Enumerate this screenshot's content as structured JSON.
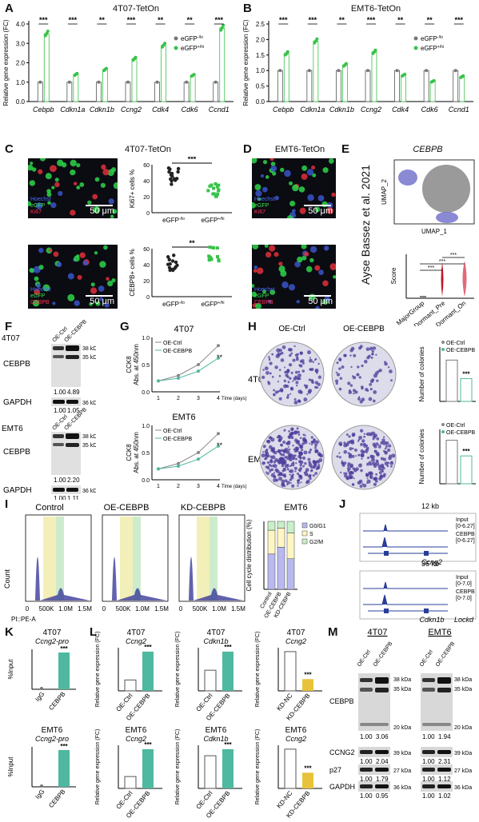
{
  "figure": {
    "panels": {
      "A": {
        "label": "A",
        "title": "4T07-TetOn"
      },
      "B": {
        "label": "B",
        "title": "EMT6-TetOn"
      },
      "C": {
        "label": "C",
        "title": "4T07-TetOn"
      },
      "D": {
        "label": "D",
        "title": "EMT6-TetOn"
      },
      "E": {
        "label": "E",
        "title": "CEBPB",
        "side_label": "Ayse Bassez et al. 2021"
      },
      "F": {
        "label": "F"
      },
      "G": {
        "label": "G"
      },
      "H": {
        "label": "H"
      },
      "I": {
        "label": "I"
      },
      "J": {
        "label": "J"
      },
      "K": {
        "label": "K"
      },
      "L": {
        "label": "L"
      },
      "M": {
        "label": "M"
      }
    },
    "micro": {
      "hoechst": "Hoechst",
      "egfp": "eGFP",
      "ki67": "Ki67",
      "cebpb": "CEBPB",
      "scale": "50 μm"
    },
    "ab_genes": [
      "Cebpb",
      "Cdkn1a",
      "Cdkn1b",
      "Ccng2",
      "Cdk4",
      "Cdk6",
      "Ccnd1"
    ],
    "ab_ylabel": "Relative gene expression (FC)",
    "ab_legend": {
      "lo": "eGFP",
      "lo_sup": "-/lo",
      "hi": "eGFP",
      "hi_sup": "+/hi"
    },
    "sig": {
      "3": "***",
      "2": "**"
    },
    "c_plots": {
      "ki67_ylabel": "Ki67+ cells %",
      "cebpb_ylabel": "CEBPB+ cells %",
      "x_lo": "eGFP",
      "x_hi": "eGFP",
      "x_lo_sup": "-/lo",
      "x_hi_sup": "+/hi",
      "sig_top": "***",
      "sig_bot": "**"
    },
    "umap": {
      "x": "UMAP_1",
      "y": "UMAP_2"
    },
    "violin": {
      "ylabel": "Score",
      "groups": [
        "MajorGroup",
        "Dormant_Pre",
        "Dormant_On"
      ]
    },
    "F": {
      "t4t07": "4T07",
      "temt6": "EMT6",
      "oe_ctrl": "OE-Ctrl",
      "oe_cebpb": "OE-CEBPB",
      "cebpb": "CEBPB",
      "gapdh": "GAPDH",
      "kda38": "38 kDa",
      "kda35": "35 kDa",
      "kda36": "36 kDa",
      "q1": "1.00",
      "q2": "4.89",
      "q3": "1.00",
      "q4": "1.05",
      "q5": "1.00",
      "q6": "2.20",
      "q7": "1.00",
      "q8": "1.11"
    },
    "G": {
      "t1": "4T07",
      "t2": "EMT6",
      "ylabel": "CCK8\nAbs. at 450nm",
      "xlabel": "Time (days)",
      "leg1": "OE-Ctrl",
      "leg2": "OE-CEBPB",
      "sig": "**"
    },
    "H": {
      "oe_ctrl": "OE-Ctrl",
      "oe_cebpb": "OE-CEBPB",
      "r1": "4T07",
      "r2": "EMT6",
      "ylabel": "Number of colonies",
      "sig": "***"
    },
    "I": {
      "t1": "Control",
      "t2": "OE-CEBPB",
      "t3": "KD-CEBPB",
      "t4": "EMT6",
      "xaxis": "PI::PE-A",
      "count": "Count",
      "ticks": [
        "0",
        "500K",
        "1.0M",
        "1.5M"
      ],
      "ylabel": "Cell cycle distribution (%)",
      "leg": [
        "G0/G1",
        "S",
        "G2/M"
      ],
      "cats": [
        "Control",
        "OE-CEBPB",
        "KD-CEBPB"
      ]
    },
    "J": {
      "kb1": "12 kb",
      "kb2": "36 kb",
      "input": "Input",
      "cebpb": "CEBPB",
      "r1": "[0-6.27]",
      "r2": "[0-7.0]",
      "g1": "Ccng2",
      "g2a": "Cdkn1b",
      "g2b": "Lockd"
    },
    "K": {
      "ylabel": "%Input",
      "t1a": "4T07",
      "t1b": "Ccng2-pro",
      "t2a": "EMT6",
      "t2b": "Ccng2-pro",
      "cats": [
        "IgG",
        "CEBPB"
      ]
    },
    "L": {
      "ylabel": "Relative gene expression (FC)",
      "titles": [
        [
          "4T07",
          "Ccng2"
        ],
        [
          "4T07",
          "Cdkn1b"
        ],
        [
          "4T07",
          "Ccng2"
        ],
        [
          "EMT6",
          "Ccng2"
        ],
        [
          "EMT6",
          "Cdkn1b"
        ],
        [
          "EMT6",
          "Ccng2"
        ]
      ],
      "cats_oe": [
        "OE-Ctrl",
        "OE-CEBPB"
      ],
      "cats_kd": [
        "KD-NC",
        "KD-CEBPB"
      ]
    },
    "M": {
      "t1": "4T07",
      "t2": "EMT6",
      "oe_ctrl": "OE-Ctrl",
      "oe_cebpb": "OE-CEBPB",
      "cebpb": "CEBPB",
      "ccng2": "CCNG2",
      "p27": "p27",
      "gapdh": "GAPDH",
      "k38": "38 kDa",
      "k35": "35 kDa",
      "k20": "20 kDa",
      "k39": "39 kDa",
      "k27": "27 kDa",
      "k36": "36 kDa",
      "q": [
        [
          "1.00",
          "3.06"
        ],
        [
          "1.00",
          "2.04"
        ],
        [
          "1.00",
          "1.79"
        ],
        [
          "1.00",
          "0.95"
        ],
        [
          "1.00",
          "1.94"
        ],
        [
          "1.00",
          "2.31"
        ],
        [
          "1.00",
          "1.12"
        ],
        [
          "1.00",
          "1.02"
        ]
      ]
    }
  },
  "colors": {
    "green": "#39c24a",
    "teal": "#4fb8a0",
    "yellow": "#e8c23a",
    "purple": "#6b6bc9",
    "red": "#c0182a"
  },
  "chart_data": [
    {
      "type": "bar",
      "title": "4T07-TetOn",
      "ylabel": "Relative gene expression (FC)",
      "ylim": [
        0,
        4
      ],
      "categories": [
        "Cebpb",
        "Cdkn1a",
        "Cdkn1b",
        "Ccng2",
        "Cdk4",
        "Cdk6",
        "Ccnd1"
      ],
      "series": [
        {
          "name": "eGFP-/lo",
          "values": [
            1,
            1,
            1,
            1,
            1,
            1,
            1
          ]
        },
        {
          "name": "eGFP+/hi",
          "values": [
            3.5,
            1.4,
            1.65,
            2.2,
            2.9,
            1.35,
            3.8
          ]
        }
      ]
    },
    {
      "type": "bar",
      "title": "EMT6-TetOn",
      "ylabel": "Relative gene expression (FC)",
      "ylim": [
        0,
        2.5
      ],
      "categories": [
        "Cebpb",
        "Cdkn1a",
        "Cdkn1b",
        "Ccng2",
        "Cdk4",
        "Cdk6",
        "Ccnd1"
      ],
      "series": [
        {
          "name": "eGFP-/lo",
          "values": [
            1,
            1,
            1,
            1,
            1,
            1,
            1
          ]
        },
        {
          "name": "eGFP+/hi",
          "values": [
            1.55,
            1.95,
            1.18,
            1.6,
            0.85,
            0.65,
            0.8
          ]
        }
      ]
    }
  ]
}
